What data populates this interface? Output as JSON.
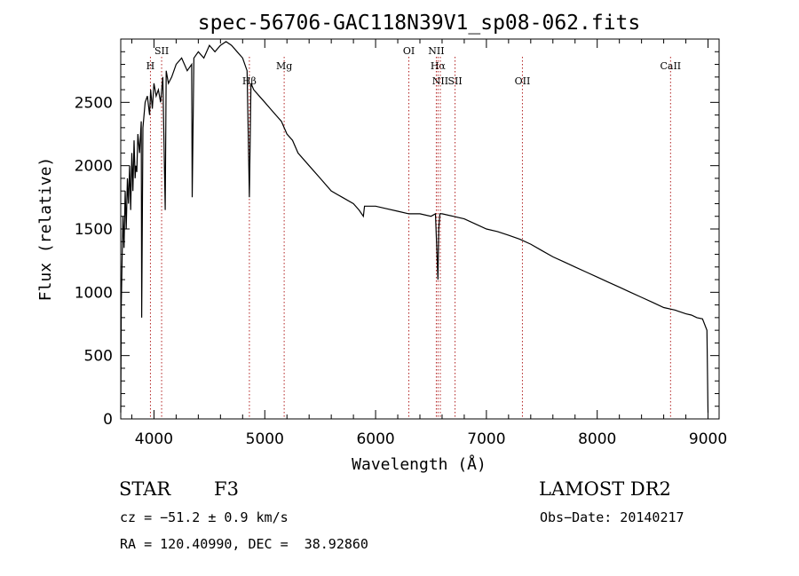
{
  "chart_data": {
    "type": "line",
    "title": "spec-56706-GAC118N39V1_sp08-062.fits",
    "xlabel": "Wavelength (Å)",
    "ylabel": "Flux (relative)",
    "xlim": [
      3700,
      9100
    ],
    "ylim": [
      0,
      3000
    ],
    "xticks": [
      4000,
      5000,
      6000,
      7000,
      8000,
      9000
    ],
    "yticks": [
      0,
      500,
      1000,
      1500,
      2000,
      2500
    ],
    "grid": false,
    "series": [
      {
        "x": [
          3700,
          3705,
          3712,
          3720,
          3730,
          3740,
          3750,
          3760,
          3770,
          3780,
          3790,
          3800,
          3810,
          3820,
          3830,
          3836,
          3845,
          3855,
          3870,
          3885,
          3889,
          3900,
          3920,
          3940,
          3960,
          3970,
          3985,
          4000,
          4020,
          4040,
          4060,
          4080,
          4101,
          4110,
          4130,
          4160,
          4200,
          4250,
          4300,
          4340,
          4345,
          4360,
          4400,
          4450,
          4500,
          4550,
          4600,
          4650,
          4700,
          4750,
          4800,
          4840,
          4861,
          4875,
          4900,
          4950,
          5000,
          5050,
          5100,
          5150,
          5200,
          5250,
          5300,
          5400,
          5500,
          5600,
          5700,
          5800,
          5850,
          5890,
          5900,
          6000,
          6100,
          6200,
          6300,
          6400,
          6500,
          6540,
          6550,
          6563,
          6570,
          6580,
          6600,
          6700,
          6800,
          6900,
          7000,
          7100,
          7200,
          7300,
          7400,
          7500,
          7600,
          7700,
          7800,
          7900,
          8000,
          8100,
          8200,
          8300,
          8400,
          8500,
          8600,
          8700,
          8800,
          8850,
          8900,
          8950,
          8990,
          9000
        ],
        "y": [
          50,
          900,
          1250,
          1600,
          1350,
          1800,
          1500,
          1900,
          1700,
          2000,
          1650,
          2100,
          1800,
          2200,
          1900,
          2000,
          1950,
          2250,
          2100,
          2350,
          800,
          2300,
          2500,
          2550,
          2400,
          2600,
          2450,
          2650,
          2550,
          2600,
          2500,
          2700,
          1650,
          2750,
          2650,
          2700,
          2800,
          2850,
          2750,
          2800,
          1750,
          2850,
          2900,
          2850,
          2950,
          2900,
          2950,
          2980,
          2950,
          2900,
          2850,
          2750,
          1750,
          2650,
          2600,
          2550,
          2500,
          2450,
          2400,
          2350,
          2250,
          2200,
          2100,
          2000,
          1900,
          1800,
          1750,
          1700,
          1650,
          1600,
          1680,
          1680,
          1660,
          1640,
          1620,
          1620,
          1600,
          1620,
          1400,
          1100,
          1500,
          1620,
          1620,
          1600,
          1580,
          1540,
          1500,
          1480,
          1450,
          1420,
          1380,
          1330,
          1280,
          1240,
          1200,
          1160,
          1120,
          1080,
          1040,
          1000,
          960,
          920,
          880,
          860,
          830,
          820,
          800,
          790,
          700,
          50
        ]
      }
    ],
    "lines": [
      {
        "name": "H",
        "x": 3968,
        "row": 1
      },
      {
        "name": "SII",
        "x": 4069,
        "row": 0
      },
      {
        "name": "Hβ",
        "x": 4861,
        "row": 2
      },
      {
        "name": "Mg",
        "x": 5175,
        "row": 1
      },
      {
        "name": "OI",
        "x": 6300,
        "row": 0
      },
      {
        "name": "NII",
        "x": 6548,
        "row": 0
      },
      {
        "name": "Hα",
        "x": 6563,
        "row": 1
      },
      {
        "name": "NII",
        "x": 6584,
        "row": 2
      },
      {
        "name": "SII",
        "x": 6717,
        "row": 2
      },
      {
        "name": "OII",
        "x": 7325,
        "row": 2
      },
      {
        "name": "CaII",
        "x": 8662,
        "row": 1
      }
    ]
  },
  "info": {
    "object_type": "STAR",
    "subclass": "F3",
    "survey": "LAMOST DR2",
    "cz": "cz = −51.2 ± 0.9 km/s",
    "obs_date": "Obs−Date: 20140217",
    "coords": "RA = 120.40990, DEC =  38.92860"
  }
}
